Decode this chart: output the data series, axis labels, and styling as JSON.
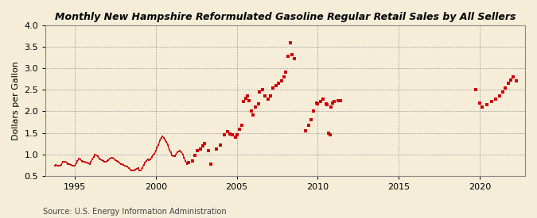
{
  "title": "Monthly New Hampshire Reformulated Gasoline Regular Retail Sales by All Sellers",
  "ylabel": "Dollars per Gallon",
  "source": "Source: U.S. Energy Information Administration",
  "background_color": "#f5edd8",
  "line_color": "#cc0000",
  "marker_color": "#cc0000",
  "xlim": [
    1993.2,
    2022.8
  ],
  "ylim": [
    0.5,
    4.0
  ],
  "yticks": [
    0.5,
    1.0,
    1.5,
    2.0,
    2.5,
    3.0,
    3.5,
    4.0
  ],
  "xticks": [
    1995,
    2000,
    2005,
    2010,
    2015,
    2020
  ],
  "segments": [
    {
      "dates": [
        1993.75,
        1993.83,
        1993.92,
        1994.0,
        1994.08,
        1994.17,
        1994.25,
        1994.33,
        1994.42,
        1994.5,
        1994.58,
        1994.67,
        1994.75,
        1994.83,
        1994.92,
        1995.0,
        1995.08,
        1995.17,
        1995.25,
        1995.33,
        1995.42,
        1995.5,
        1995.58,
        1995.67,
        1995.75,
        1995.83,
        1995.92,
        1996.0,
        1996.08,
        1996.17,
        1996.25,
        1996.33,
        1996.42,
        1996.5,
        1996.58,
        1996.67,
        1996.75,
        1996.83,
        1996.92,
        1997.0,
        1997.08,
        1997.17,
        1997.25,
        1997.33,
        1997.42,
        1997.5,
        1997.58,
        1997.67,
        1997.75,
        1997.83,
        1997.92,
        1998.0,
        1998.08,
        1998.17,
        1998.25,
        1998.33,
        1998.42,
        1998.5,
        1998.58,
        1998.67,
        1998.75,
        1998.83,
        1998.92,
        1999.0,
        1999.08,
        1999.17,
        1999.25,
        1999.33,
        1999.42,
        1999.5,
        1999.58,
        1999.67,
        1999.75,
        1999.83,
        1999.92,
        2000.0,
        2000.08,
        2000.17,
        2000.25,
        2000.33,
        2000.42,
        2000.5,
        2000.58,
        2000.67,
        2000.75,
        2000.83,
        2000.92,
        2001.0,
        2001.08,
        2001.17,
        2001.25,
        2001.33,
        2001.42,
        2001.5,
        2001.58,
        2001.67,
        2001.75,
        2001.83,
        2001.92
      ],
      "values": [
        0.74,
        0.75,
        0.74,
        0.74,
        0.73,
        0.76,
        0.82,
        0.83,
        0.82,
        0.8,
        0.78,
        0.78,
        0.76,
        0.74,
        0.73,
        0.73,
        0.79,
        0.84,
        0.9,
        0.88,
        0.85,
        0.83,
        0.82,
        0.81,
        0.8,
        0.79,
        0.78,
        0.83,
        0.88,
        0.94,
        1.0,
        0.97,
        0.95,
        0.9,
        0.88,
        0.86,
        0.85,
        0.83,
        0.82,
        0.85,
        0.87,
        0.9,
        0.92,
        0.91,
        0.9,
        0.87,
        0.85,
        0.83,
        0.8,
        0.78,
        0.77,
        0.75,
        0.73,
        0.72,
        0.71,
        0.68,
        0.65,
        0.63,
        0.62,
        0.63,
        0.65,
        0.67,
        0.68,
        0.62,
        0.63,
        0.68,
        0.75,
        0.8,
        0.85,
        0.88,
        0.86,
        0.88,
        0.93,
        0.98,
        1.02,
        1.08,
        1.15,
        1.22,
        1.32,
        1.38,
        1.42,
        1.38,
        1.32,
        1.28,
        1.22,
        1.1,
        1.05,
        0.98,
        0.95,
        0.96,
        1.0,
        1.05,
        1.07,
        1.08,
        1.05,
        1.0,
        0.92,
        0.85,
        0.78
      ],
      "connected": true
    },
    {
      "dates": [
        2002.0,
        2002.25,
        2002.42,
        2002.58,
        2002.75,
        2002.92,
        2003.0,
        2003.25,
        2003.42,
        2003.75,
        2004.0,
        2004.25,
        2004.42,
        2004.58,
        2004.75,
        2004.92,
        2005.0,
        2005.17,
        2005.33,
        2005.42,
        2005.58,
        2005.67,
        2005.75,
        2005.92,
        2006.0,
        2006.17,
        2006.33,
        2006.42,
        2006.58,
        2006.75,
        2006.92,
        2007.08,
        2007.25,
        2007.42,
        2007.58,
        2007.75,
        2007.92,
        2008.0,
        2008.17,
        2008.33,
        2008.42,
        2008.58,
        2009.25,
        2009.42,
        2009.58,
        2009.75,
        2009.92
      ],
      "values": [
        0.8,
        0.85,
        0.97,
        1.08,
        1.12,
        1.2,
        1.25,
        1.08,
        0.78,
        1.12,
        1.22,
        1.45,
        1.52,
        1.48,
        1.45,
        1.4,
        1.45,
        1.58,
        1.68,
        2.22,
        2.3,
        2.35,
        2.25,
        2.0,
        1.92,
        2.1,
        2.18,
        2.45,
        2.5,
        2.35,
        2.28,
        2.35,
        2.55,
        2.6,
        2.65,
        2.7,
        2.8,
        2.92,
        3.28,
        3.6,
        3.32,
        3.22,
        1.55,
        1.68,
        1.8,
        2.0,
        2.2
      ],
      "connected": false
    },
    {
      "dates": [
        2010.0,
        2010.17,
        2010.33,
        2010.5,
        2010.58,
        2010.67,
        2010.75,
        2010.83,
        2010.92,
        2011.0,
        2011.25,
        2011.42
      ],
      "values": [
        2.18,
        2.22,
        2.28,
        2.18,
        2.15,
        1.5,
        1.45,
        2.1,
        2.2,
        2.22,
        2.25,
        2.25
      ],
      "connected": false
    },
    {
      "dates": [
        2019.75,
        2020.0,
        2020.17,
        2020.42,
        2020.75,
        2021.0,
        2021.25,
        2021.42,
        2021.58,
        2021.75,
        2021.92,
        2022.08,
        2022.25
      ],
      "values": [
        2.5,
        2.2,
        2.1,
        2.15,
        2.22,
        2.28,
        2.35,
        2.45,
        2.55,
        2.65,
        2.72,
        2.8,
        2.7
      ],
      "connected": false
    }
  ]
}
